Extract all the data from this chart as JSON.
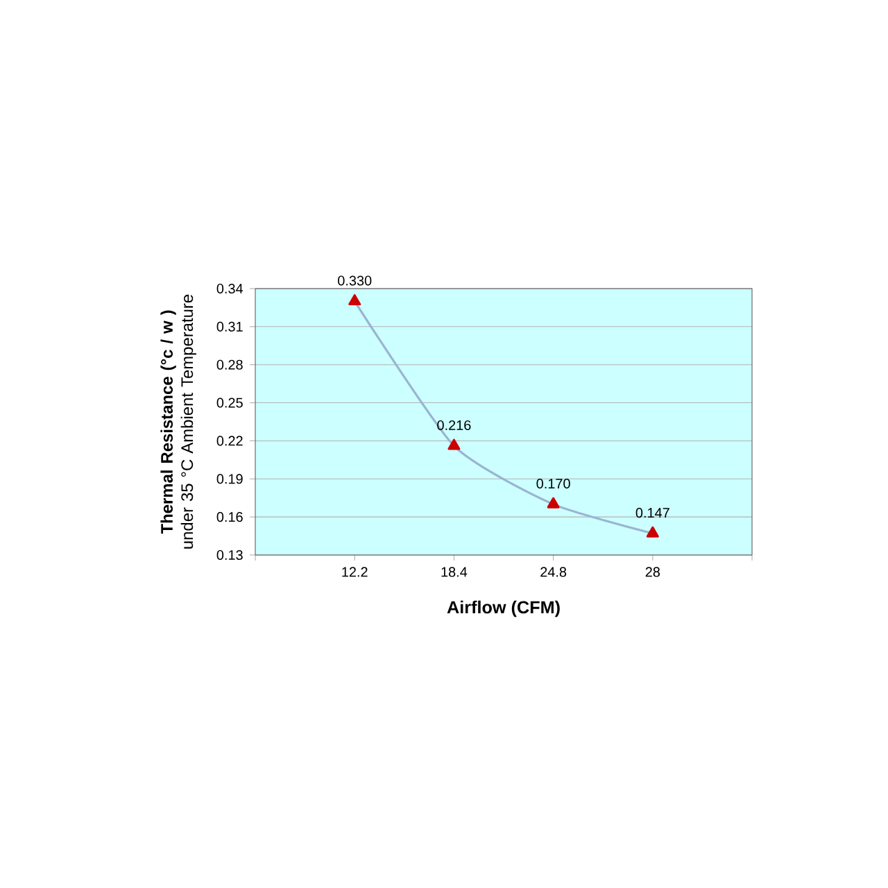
{
  "chart_data": {
    "type": "line",
    "xlabel": "Airflow (CFM)",
    "ylabel": "**Thermal Resistance (°c / w )** under 35 °C Ambient Temperature",
    "categories": [
      null,
      "12.2",
      "18.4",
      "24.8",
      "28",
      null
    ],
    "series": [
      {
        "color": "#9ab4d2",
        "values": [
          null,
          0.33,
          0.216,
          0.17,
          0.147,
          null
        ],
        "value_labels": [
          null,
          "0.330",
          "0.216",
          "0.170",
          "0.147",
          null
        ]
      }
    ],
    "ylim": [
      0.13,
      0.34
    ],
    "yticks": [
      {
        "value": 0.13,
        "label": "0.13"
      },
      {
        "value": 0.16,
        "label": "0.16"
      },
      {
        "value": 0.19,
        "label": "0.19"
      },
      {
        "value": 0.22,
        "label": "0.22"
      },
      {
        "value": 0.25,
        "label": "0.25"
      },
      {
        "value": 0.28,
        "label": "0.28"
      },
      {
        "value": 0.31,
        "label": "0.31"
      },
      {
        "value": 0.34,
        "label": "0.34"
      }
    ],
    "grid": "y",
    "marker": "triangle",
    "line_style": "solid"
  }
}
